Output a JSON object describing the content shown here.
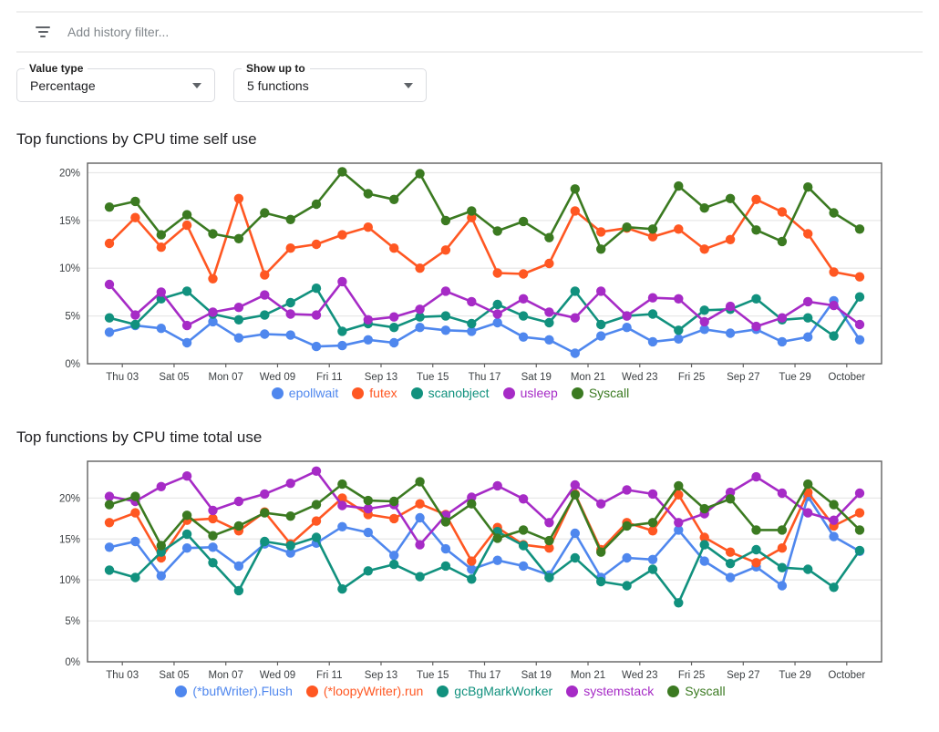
{
  "filter_bar": {
    "icon": "filter-list-icon",
    "placeholder": "Add history filter..."
  },
  "controls": {
    "value_type": {
      "label": "Value type",
      "value": "Percentage"
    },
    "show_up_to": {
      "label": "Show up to",
      "value": "5 functions"
    }
  },
  "colors": {
    "axis": "#616161",
    "grid": "#e8e8e8",
    "tick_text": "#3c4043",
    "blue": "#4f87ee",
    "orange": "#ff5722",
    "teal": "#11917e",
    "purple": "#a62bc6",
    "green": "#3b7a21"
  },
  "chart_data": [
    {
      "type": "line",
      "title": "Top functions by CPU time self use",
      "ylim": [
        0,
        21
      ],
      "yticks": [
        0,
        5,
        10,
        15,
        20
      ],
      "ytick_suffix": "%",
      "grid": true,
      "legend_position": "bottom",
      "x_tick_labels": [
        "Thu 03",
        "Sat 05",
        "Mon 07",
        "Wed 09",
        "Fri 11",
        "Sep 13",
        "Tue 15",
        "Thu 17",
        "Sat 19",
        "Mon 21",
        "Wed 23",
        "Fri 25",
        "Sep 27",
        "Tue 29",
        "October"
      ],
      "series": [
        {
          "name": "epollwait",
          "color": "#4f87ee",
          "values": [
            3.3,
            4.0,
            3.7,
            2.2,
            4.4,
            2.7,
            3.1,
            3.0,
            1.8,
            1.9,
            2.5,
            2.2,
            3.8,
            3.5,
            3.4,
            4.3,
            2.8,
            2.5,
            1.1,
            2.9,
            3.8,
            2.3,
            2.6,
            3.6,
            3.2,
            3.6,
            2.3,
            2.8,
            6.6,
            2.5
          ]
        },
        {
          "name": "futex",
          "color": "#ff5722",
          "values": [
            12.6,
            15.3,
            12.2,
            14.5,
            8.9,
            17.3,
            9.3,
            12.1,
            12.5,
            13.5,
            14.3,
            12.1,
            10.0,
            11.9,
            15.3,
            9.5,
            9.4,
            10.5,
            16.0,
            13.8,
            14.2,
            13.3,
            14.1,
            12.0,
            13.0,
            17.2,
            15.9,
            13.6,
            9.6,
            9.1
          ]
        },
        {
          "name": "scanobject",
          "color": "#11917e",
          "values": [
            4.8,
            4.1,
            6.8,
            7.6,
            5.2,
            4.6,
            5.1,
            6.4,
            7.9,
            3.4,
            4.2,
            3.8,
            4.9,
            5.0,
            4.2,
            6.2,
            5.0,
            4.3,
            7.6,
            4.1,
            5.0,
            5.2,
            3.5,
            5.6,
            5.7,
            6.8,
            4.6,
            4.8,
            2.9,
            7.0
          ]
        },
        {
          "name": "usleep",
          "color": "#a62bc6",
          "values": [
            8.3,
            5.1,
            7.5,
            4.0,
            5.4,
            5.9,
            7.2,
            5.2,
            5.1,
            8.6,
            4.6,
            4.9,
            5.7,
            7.6,
            6.5,
            5.2,
            6.8,
            5.4,
            4.8,
            7.6,
            5.0,
            6.9,
            6.8,
            4.4,
            6.0,
            3.9,
            4.8,
            6.5,
            6.1,
            4.1
          ]
        },
        {
          "name": "Syscall",
          "color": "#3b7a21",
          "values": [
            16.4,
            17.0,
            13.5,
            15.6,
            13.6,
            13.1,
            15.8,
            15.1,
            16.7,
            20.1,
            17.8,
            17.2,
            19.9,
            15.0,
            16.0,
            13.9,
            14.9,
            13.2,
            18.3,
            12.0,
            14.3,
            14.1,
            18.6,
            16.3,
            17.3,
            14.0,
            12.8,
            18.5,
            15.8,
            14.1
          ]
        }
      ]
    },
    {
      "type": "line",
      "title": "Top functions by CPU time total use",
      "ylim": [
        0,
        24.5
      ],
      "yticks": [
        0,
        5,
        10,
        15,
        20
      ],
      "ytick_suffix": "%",
      "grid": true,
      "legend_position": "bottom",
      "x_tick_labels": [
        "Thu 03",
        "Sat 05",
        "Mon 07",
        "Wed 09",
        "Fri 11",
        "Sep 13",
        "Tue 15",
        "Thu 17",
        "Sat 19",
        "Mon 21",
        "Wed 23",
        "Fri 25",
        "Sep 27",
        "Tue 29",
        "October"
      ],
      "series": [
        {
          "name": "(*bufWriter).Flush",
          "color": "#4f87ee",
          "values": [
            14.0,
            14.7,
            10.5,
            13.9,
            14.0,
            11.7,
            14.4,
            13.3,
            14.5,
            16.5,
            15.8,
            13.0,
            17.6,
            13.8,
            11.3,
            12.4,
            11.7,
            10.6,
            15.7,
            10.3,
            12.7,
            12.5,
            16.1,
            12.3,
            10.3,
            11.6,
            9.3,
            20.2,
            15.3,
            13.5
          ]
        },
        {
          "name": "(*loopyWriter).run",
          "color": "#ff5722",
          "values": [
            17.0,
            18.2,
            12.7,
            17.3,
            17.5,
            16.0,
            18.3,
            14.4,
            17.2,
            20.0,
            18.0,
            17.5,
            19.3,
            18.0,
            12.3,
            16.4,
            14.3,
            13.9,
            20.5,
            13.7,
            17.0,
            16.0,
            20.4,
            15.2,
            13.4,
            12.1,
            13.9,
            20.7,
            16.6,
            18.2
          ]
        },
        {
          "name": "gcBgMarkWorker",
          "color": "#11917e",
          "values": [
            11.2,
            10.3,
            13.4,
            15.6,
            12.1,
            8.7,
            14.7,
            14.2,
            15.2,
            8.9,
            11.1,
            11.9,
            10.4,
            11.7,
            10.1,
            15.9,
            14.2,
            10.3,
            12.7,
            9.8,
            9.3,
            11.3,
            7.2,
            14.3,
            12.0,
            13.7,
            11.5,
            11.3,
            9.1,
            13.6
          ]
        },
        {
          "name": "systemstack",
          "color": "#a62bc6",
          "values": [
            20.2,
            19.6,
            21.4,
            22.7,
            18.5,
            19.6,
            20.5,
            21.8,
            23.3,
            19.1,
            18.7,
            19.2,
            14.3,
            17.9,
            20.1,
            21.5,
            19.9,
            17.0,
            21.6,
            19.3,
            21.0,
            20.5,
            17.0,
            18.1,
            20.7,
            22.6,
            20.6,
            18.2,
            17.3,
            20.6
          ]
        },
        {
          "name": "Syscall",
          "color": "#3b7a21",
          "values": [
            19.2,
            20.2,
            14.2,
            17.9,
            15.4,
            16.6,
            18.2,
            17.8,
            19.2,
            21.7,
            19.7,
            19.6,
            22.0,
            17.1,
            19.3,
            15.1,
            16.1,
            14.8,
            20.4,
            13.4,
            16.6,
            17.0,
            21.5,
            18.7,
            19.9,
            16.1,
            16.1,
            21.7,
            19.2,
            16.1
          ]
        }
      ]
    }
  ]
}
